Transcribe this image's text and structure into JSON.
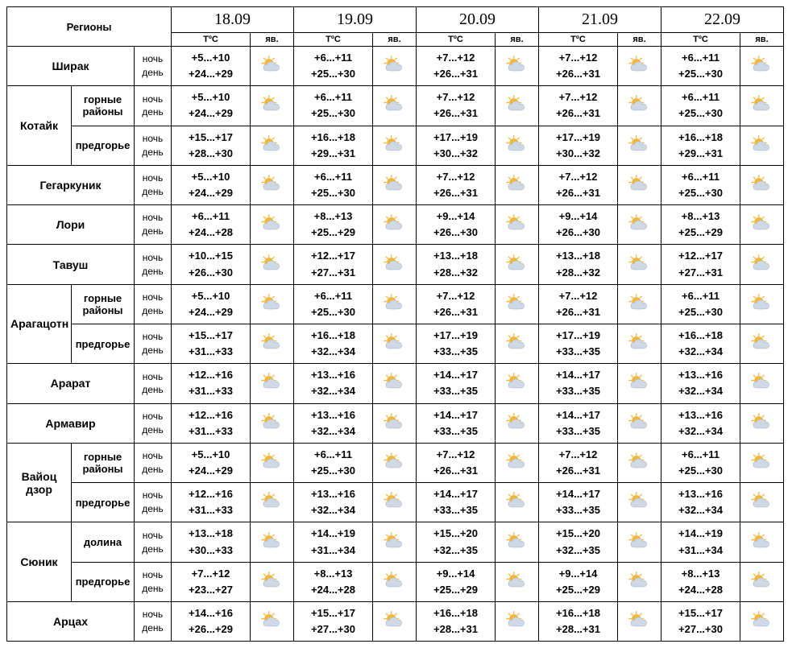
{
  "header": {
    "regions_label": "Регионы",
    "temp_label": "ТºС",
    "phen_label": "яв.",
    "night_label": "ночь",
    "day_label": "день",
    "dates": [
      "18.09",
      "19.09",
      "20.09",
      "21.09",
      "22.09"
    ]
  },
  "icon_colors": {
    "sun_fill": "#f7b733",
    "sun_stroke": "#e09a12",
    "cloud_fill": "#cfd9e6",
    "cloud_stroke": "#9fb2c9"
  },
  "rows": [
    {
      "region_main": "Ширак",
      "region_sub": null,
      "group_span": 1,
      "cells": [
        {
          "n": "+5...+10",
          "d": "+24...+29"
        },
        {
          "n": "+6...+11",
          "d": "+25...+30"
        },
        {
          "n": "+7...+12",
          "d": "+26...+31"
        },
        {
          "n": "+7...+12",
          "d": "+26...+31"
        },
        {
          "n": "+6...+11",
          "d": "+25...+30"
        }
      ]
    },
    {
      "region_main": "Котайк",
      "region_sub": "горные районы",
      "group_span": 2,
      "cells": [
        {
          "n": "+5...+10",
          "d": "+24...+29"
        },
        {
          "n": "+6...+11",
          "d": "+25...+30"
        },
        {
          "n": "+7...+12",
          "d": "+26...+31"
        },
        {
          "n": "+7...+12",
          "d": "+26...+31"
        },
        {
          "n": "+6...+11",
          "d": "+25...+30"
        }
      ]
    },
    {
      "region_main": null,
      "region_sub": "предгорье",
      "group_span": 0,
      "cells": [
        {
          "n": "+15...+17",
          "d": "+28...+30"
        },
        {
          "n": "+16...+18",
          "d": "+29...+31"
        },
        {
          "n": "+17...+19",
          "d": "+30...+32"
        },
        {
          "n": "+17...+19",
          "d": "+30...+32"
        },
        {
          "n": "+16...+18",
          "d": "+29...+31"
        }
      ]
    },
    {
      "region_main": "Гегаркуник",
      "region_sub": null,
      "group_span": 1,
      "cells": [
        {
          "n": "+5...+10",
          "d": "+24...+29"
        },
        {
          "n": "+6...+11",
          "d": "+25...+30"
        },
        {
          "n": "+7...+12",
          "d": "+26...+31"
        },
        {
          "n": "+7...+12",
          "d": "+26...+31"
        },
        {
          "n": "+6...+11",
          "d": "+25...+30"
        }
      ]
    },
    {
      "region_main": "Лори",
      "region_sub": null,
      "group_span": 1,
      "cells": [
        {
          "n": "+6...+11",
          "d": "+24...+28"
        },
        {
          "n": "+8...+13",
          "d": "+25...+29"
        },
        {
          "n": "+9...+14",
          "d": "+26...+30"
        },
        {
          "n": "+9...+14",
          "d": "+26...+30"
        },
        {
          "n": "+8...+13",
          "d": "+25...+29"
        }
      ]
    },
    {
      "region_main": "Тавуш",
      "region_sub": null,
      "group_span": 1,
      "cells": [
        {
          "n": "+10...+15",
          "d": "+26...+30"
        },
        {
          "n": "+12...+17",
          "d": "+27...+31"
        },
        {
          "n": "+13...+18",
          "d": "+28...+32"
        },
        {
          "n": "+13...+18",
          "d": "+28...+32"
        },
        {
          "n": "+12...+17",
          "d": "+27...+31"
        }
      ]
    },
    {
      "region_main": "Арагацотн",
      "region_sub": "горные районы",
      "group_span": 2,
      "cells": [
        {
          "n": "+5...+10",
          "d": "+24...+29"
        },
        {
          "n": "+6...+11",
          "d": "+25...+30"
        },
        {
          "n": "+7...+12",
          "d": "+26...+31"
        },
        {
          "n": "+7...+12",
          "d": "+26...+31"
        },
        {
          "n": "+6...+11",
          "d": "+25...+30"
        }
      ]
    },
    {
      "region_main": null,
      "region_sub": "предгорье",
      "group_span": 0,
      "cells": [
        {
          "n": "+15...+17",
          "d": "+31...+33"
        },
        {
          "n": "+16...+18",
          "d": "+32...+34"
        },
        {
          "n": "+17...+19",
          "d": "+33...+35"
        },
        {
          "n": "+17...+19",
          "d": "+33...+35"
        },
        {
          "n": "+16...+18",
          "d": "+32...+34"
        }
      ]
    },
    {
      "region_main": "Арарат",
      "region_sub": null,
      "group_span": 1,
      "cells": [
        {
          "n": "+12...+16",
          "d": "+31...+33"
        },
        {
          "n": "+13...+16",
          "d": "+32...+34"
        },
        {
          "n": "+14...+17",
          "d": "+33...+35"
        },
        {
          "n": "+14...+17",
          "d": "+33...+35"
        },
        {
          "n": "+13...+16",
          "d": "+32...+34"
        }
      ]
    },
    {
      "region_main": "Армавир",
      "region_sub": null,
      "group_span": 1,
      "cells": [
        {
          "n": "+12...+16",
          "d": "+31...+33"
        },
        {
          "n": "+13...+16",
          "d": "+32...+34"
        },
        {
          "n": "+14...+17",
          "d": "+33...+35"
        },
        {
          "n": "+14...+17",
          "d": "+33...+35"
        },
        {
          "n": "+13...+16",
          "d": "+32...+34"
        }
      ]
    },
    {
      "region_main": "Вайоц дзор",
      "region_sub": "горные районы",
      "group_span": 2,
      "cells": [
        {
          "n": "+5...+10",
          "d": "+24...+29"
        },
        {
          "n": "+6...+11",
          "d": "+25...+30"
        },
        {
          "n": "+7...+12",
          "d": "+26...+31"
        },
        {
          "n": "+7...+12",
          "d": "+26...+31"
        },
        {
          "n": "+6...+11",
          "d": "+25...+30"
        }
      ]
    },
    {
      "region_main": null,
      "region_sub": "предгорье",
      "group_span": 0,
      "cells": [
        {
          "n": "+12...+16",
          "d": "+31...+33"
        },
        {
          "n": "+13...+16",
          "d": "+32...+34"
        },
        {
          "n": "+14...+17",
          "d": "+33...+35"
        },
        {
          "n": "+14...+17",
          "d": "+33...+35"
        },
        {
          "n": "+13...+16",
          "d": "+32...+34"
        }
      ]
    },
    {
      "region_main": "Сюник",
      "region_sub": "долина",
      "group_span": 2,
      "cells": [
        {
          "n": "+13...+18",
          "d": "+30...+33"
        },
        {
          "n": "+14...+19",
          "d": "+31...+34"
        },
        {
          "n": "+15...+20",
          "d": "+32...+35"
        },
        {
          "n": "+15...+20",
          "d": "+32...+35"
        },
        {
          "n": "+14...+19",
          "d": "+31...+34"
        }
      ]
    },
    {
      "region_main": null,
      "region_sub": "предгорье",
      "group_span": 0,
      "cells": [
        {
          "n": "+7...+12",
          "d": "+23...+27"
        },
        {
          "n": "+8...+13",
          "d": "+24...+28"
        },
        {
          "n": "+9...+14",
          "d": "+25...+29"
        },
        {
          "n": "+9...+14",
          "d": "+25...+29"
        },
        {
          "n": "+8...+13",
          "d": "+24...+28"
        }
      ]
    },
    {
      "region_main": "Арцах",
      "region_sub": null,
      "group_span": 1,
      "cells": [
        {
          "n": "+14...+16",
          "d": "+26...+29"
        },
        {
          "n": "+15...+17",
          "d": "+27...+30"
        },
        {
          "n": "+16...+18",
          "d": "+28...+31"
        },
        {
          "n": "+16...+18",
          "d": "+28...+31"
        },
        {
          "n": "+15...+17",
          "d": "+27...+30"
        }
      ]
    }
  ]
}
